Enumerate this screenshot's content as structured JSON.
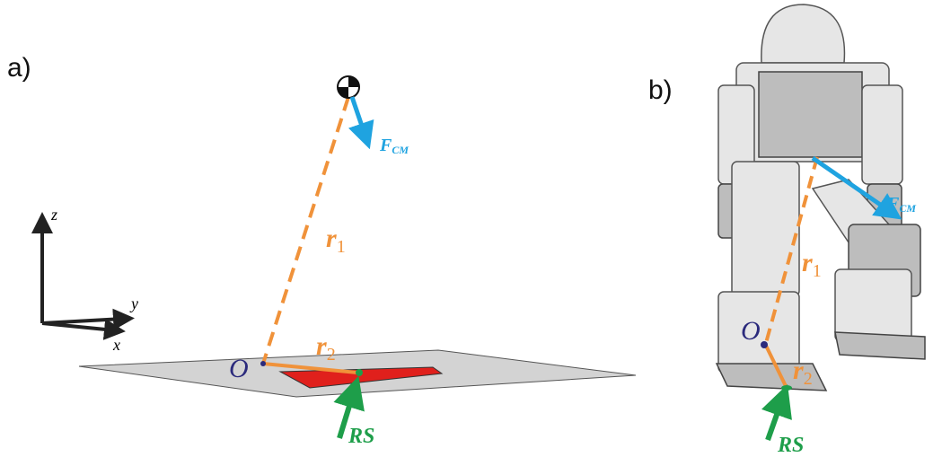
{
  "panel_a": {
    "label": "a)",
    "axes": {
      "z": "z",
      "y": "y",
      "x": "x"
    },
    "origin": "O",
    "r1": {
      "symbol": "r",
      "subscript": "1"
    },
    "r2": {
      "symbol": "r",
      "subscript": "2"
    },
    "force_cm": {
      "symbol": "F",
      "subscript": "CM"
    },
    "reaction": "RS"
  },
  "panel_b": {
    "label": "b)",
    "origin": "O",
    "r1": {
      "symbol": "r",
      "subscript": "1"
    },
    "r2": {
      "symbol": "r",
      "subscript": "2"
    },
    "force_cm": {
      "symbol": "F",
      "subscript": "CM"
    },
    "reaction": "RS"
  }
}
